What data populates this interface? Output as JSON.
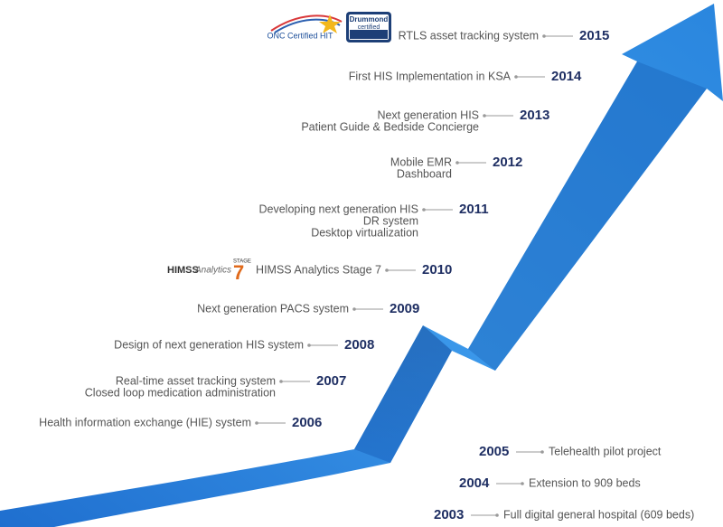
{
  "logos": {
    "onc": "ONC Certified HIT",
    "drummond": [
      "Drummond",
      "certified"
    ],
    "himss": "HIMSS",
    "analytics": "Analytics",
    "stage": "STAGE",
    "stage_number": "7"
  },
  "milestones": [
    {
      "year": "2015",
      "lines": [
        "RTLS asset tracking system"
      ]
    },
    {
      "year": "2014",
      "lines": [
        "First HIS Implementation in KSA"
      ]
    },
    {
      "year": "2013",
      "lines": [
        "Next generation HIS",
        "Patient Guide & Bedside Concierge"
      ]
    },
    {
      "year": "2012",
      "lines": [
        "Mobile EMR",
        "Dashboard"
      ]
    },
    {
      "year": "2011",
      "lines": [
        "Developing next generation HIS",
        "DR system",
        "Desktop virtualization"
      ]
    },
    {
      "year": "2010",
      "lines": [
        "HIMSS Analytics Stage 7"
      ]
    },
    {
      "year": "2009",
      "lines": [
        "Next generation PACS system"
      ]
    },
    {
      "year": "2008",
      "lines": [
        "Design of next generation HIS system"
      ]
    },
    {
      "year": "2007",
      "lines": [
        "Real-time asset tracking system",
        "Closed loop medication administration"
      ]
    },
    {
      "year": "2006",
      "lines": [
        "Health information exchange (HIE) system"
      ]
    },
    {
      "year": "2005",
      "lines": [
        "Telehealth pilot project"
      ]
    },
    {
      "year": "2004",
      "lines": [
        "Extension to 909 beds"
      ]
    },
    {
      "year": "2003",
      "lines": [
        "Full digital general hospital (609 beds)"
      ]
    }
  ]
}
